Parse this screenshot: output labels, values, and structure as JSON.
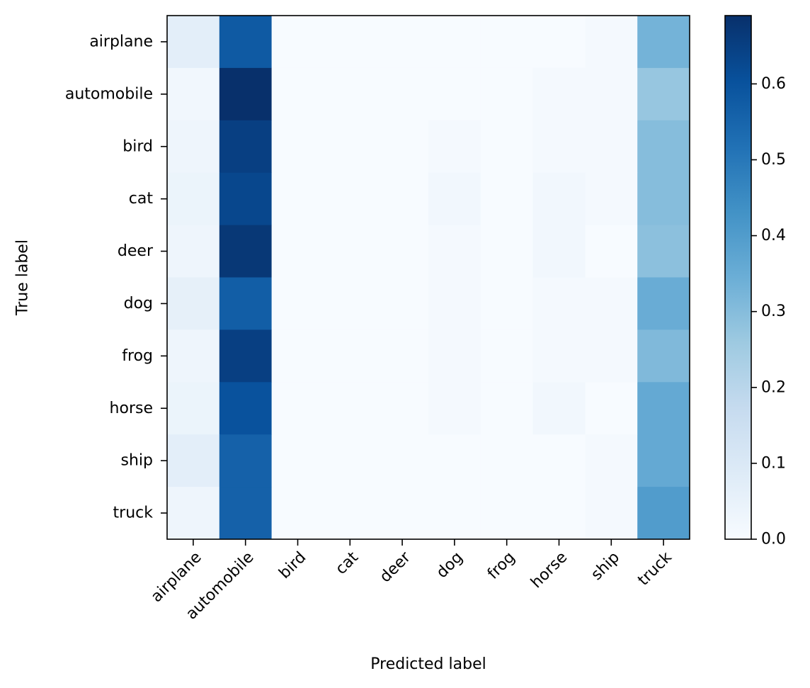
{
  "chart_data": {
    "type": "heatmap",
    "xlabel": "Predicted label",
    "ylabel": "True label",
    "x_categories": [
      "airplane",
      "automobile",
      "bird",
      "cat",
      "deer",
      "dog",
      "frog",
      "horse",
      "ship",
      "truck"
    ],
    "y_categories": [
      "airplane",
      "automobile",
      "bird",
      "cat",
      "deer",
      "dog",
      "frog",
      "horse",
      "ship",
      "truck"
    ],
    "values": [
      [
        0.07,
        0.58,
        0.0,
        0.0,
        0.0,
        0.0,
        0.0,
        0.0,
        0.01,
        0.33
      ],
      [
        0.02,
        0.69,
        0.0,
        0.0,
        0.0,
        0.0,
        0.0,
        0.01,
        0.01,
        0.27
      ],
      [
        0.03,
        0.65,
        0.0,
        0.0,
        0.0,
        0.01,
        0.0,
        0.01,
        0.01,
        0.3
      ],
      [
        0.04,
        0.63,
        0.0,
        0.0,
        0.0,
        0.02,
        0.0,
        0.02,
        0.01,
        0.3
      ],
      [
        0.03,
        0.67,
        0.0,
        0.0,
        0.0,
        0.01,
        0.0,
        0.02,
        0.0,
        0.29
      ],
      [
        0.06,
        0.57,
        0.0,
        0.0,
        0.0,
        0.01,
        0.0,
        0.01,
        0.01,
        0.35
      ],
      [
        0.03,
        0.65,
        0.0,
        0.0,
        0.0,
        0.01,
        0.0,
        0.01,
        0.01,
        0.31
      ],
      [
        0.04,
        0.6,
        0.0,
        0.0,
        0.0,
        0.01,
        0.0,
        0.02,
        0.0,
        0.36
      ],
      [
        0.07,
        0.56,
        0.0,
        0.0,
        0.0,
        0.0,
        0.0,
        0.0,
        0.01,
        0.36
      ],
      [
        0.03,
        0.56,
        0.0,
        0.0,
        0.0,
        0.0,
        0.0,
        0.0,
        0.01,
        0.4
      ]
    ],
    "colorbar": {
      "min": 0.0,
      "max": 0.69,
      "ticks": [
        {
          "value": 0.0,
          "label": "0.0"
        },
        {
          "value": 0.1,
          "label": "0.1"
        },
        {
          "value": 0.2,
          "label": "0.2"
        },
        {
          "value": 0.3,
          "label": "0.3"
        },
        {
          "value": 0.4,
          "label": "0.4"
        },
        {
          "value": 0.5,
          "label": "0.5"
        },
        {
          "value": 0.6,
          "label": "0.6"
        }
      ]
    },
    "colormap": "Blues",
    "grid": false,
    "legend": "colorbar-right"
  }
}
